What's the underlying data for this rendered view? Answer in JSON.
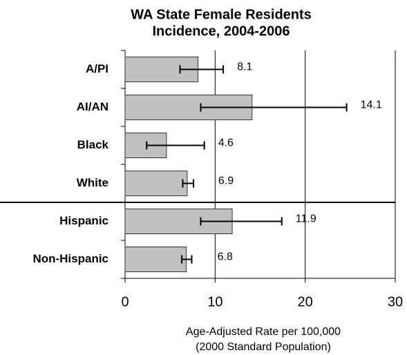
{
  "chart_data": {
    "type": "bar",
    "orientation": "horizontal",
    "title": [
      "WA State Female Residents",
      "Incidence, 2004-2006"
    ],
    "x_label": [
      "Age-Adjusted Rate per 100,000",
      "(2000 Standard Population)"
    ],
    "categories": [
      "A/PI",
      "AI/AN",
      "Black",
      "White",
      "Hispanic",
      "Non-Hispanic"
    ],
    "series": [
      {
        "color": "#c0c0c0",
        "values": [
          8.1,
          14.1,
          4.6,
          6.9,
          11.9,
          6.8
        ],
        "lower": [
          6.1,
          8.4,
          2.4,
          6.4,
          8.4,
          6.3
        ],
        "upper": [
          10.9,
          24.6,
          8.8,
          7.6,
          17.4,
          7.4
        ]
      }
    ],
    "xlim": [
      0,
      30
    ],
    "xticks": [
      0,
      10,
      20,
      30
    ],
    "grid": true
  }
}
